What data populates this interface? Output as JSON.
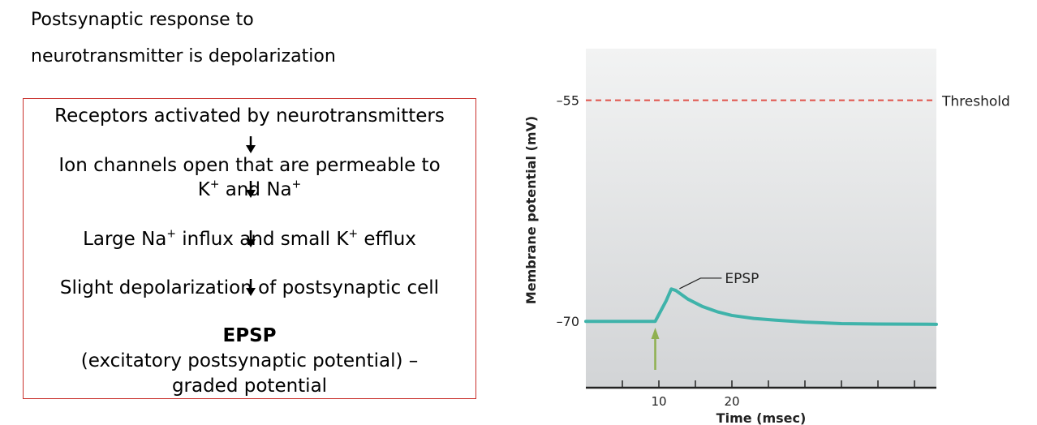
{
  "heading": {
    "line1": "Postsynaptic response to",
    "line2": "neurotransmitter is depolarization"
  },
  "flow": {
    "step1": "Receptors activated by neurotransmitters",
    "step2_line1": "Ion channels open that are permeable to",
    "step2_k": "K",
    "step2_k_sup": "+",
    "step2_and": " and Na",
    "step2_na_sup": "+",
    "step3_a": "Large Na",
    "step3_sup1": "+",
    "step3_b": " influx and small K",
    "step3_sup2": "+",
    "step3_c": " efflux",
    "step4": "Slight depolarization of postsynaptic cell",
    "result_title": "EPSP",
    "result_line1": "(excitatory postsynaptic potential) –",
    "result_line2": "graded potential"
  },
  "colors": {
    "box_border": "#c9302c",
    "threshold_line": "#e0524a",
    "trace": "#3fb3aa",
    "stimulus_arrow": "#8fb050",
    "plot_bg_top": "#f2f3f3",
    "plot_bg_bottom": "#d2d4d6"
  },
  "chart_data": {
    "type": "line",
    "xlabel": "Time (msec)",
    "ylabel": "Membrane potential (mV)",
    "x_ticks": [
      10,
      20
    ],
    "y_ticks": [
      -55,
      -70
    ],
    "y_tick_labels": [
      "–55",
      "–70"
    ],
    "xlim": [
      0,
      48
    ],
    "ylim": [
      -74.5,
      -51.5
    ],
    "threshold": {
      "value": -55,
      "label": "Threshold"
    },
    "annotation": {
      "label": "EPSP"
    },
    "stimulus_arrow_x": 9.5,
    "series": [
      {
        "x": [
          0,
          9.5,
          11,
          11.7,
          12.3,
          14,
          16,
          18,
          20,
          23,
          26,
          30,
          35,
          40,
          48
        ],
        "values": [
          -70,
          -70,
          -68.6,
          -67.8,
          -67.9,
          -68.5,
          -69.0,
          -69.35,
          -69.6,
          -69.8,
          -69.92,
          -70.05,
          -70.15,
          -70.18,
          -70.2
        ]
      }
    ]
  }
}
